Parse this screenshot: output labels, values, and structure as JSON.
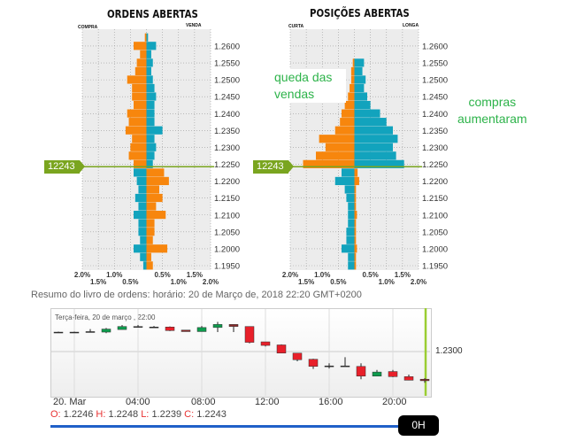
{
  "chart_data": [
    {
      "type": "bar",
      "title": "ORDENS ABERTAS",
      "left_label": "COMPRA",
      "right_label": "VENDA",
      "current_price": "12243",
      "price": 1.2243,
      "xticks": [
        "2.0%",
        "1.5%",
        "1.0%",
        "0.5%",
        "0.5%",
        "1.0%",
        "1.5%",
        "2.0%"
      ],
      "xlim": [
        -2,
        2
      ],
      "yticks": [
        "1.2600",
        "1.2550",
        "1.2500",
        "1.2450",
        "1.2400",
        "1.2350",
        "1.2300",
        "1.2250",
        "1.2200",
        "1.2150",
        "1.2100",
        "1.2050",
        "1.2000",
        "1.1950"
      ],
      "levels": [
        1.2625,
        1.26,
        1.2575,
        1.255,
        1.2525,
        1.25,
        1.2475,
        1.245,
        1.2425,
        1.24,
        1.2375,
        1.235,
        1.2325,
        1.23,
        1.2275,
        1.225,
        1.2225,
        1.22,
        1.2175,
        1.215,
        1.2125,
        1.21,
        1.2075,
        1.205,
        1.2025,
        1.2,
        1.1975,
        1.195
      ],
      "left_values": [
        0.05,
        0.4,
        0.2,
        0.3,
        0.35,
        0.6,
        0.45,
        0.45,
        0.4,
        0.6,
        0.55,
        0.65,
        0.45,
        0.5,
        0.55,
        0.4,
        0.4,
        0.3,
        0.25,
        0.35,
        0.25,
        0.4,
        0.25,
        0.25,
        0.2,
        0.4,
        0.2,
        0.1
      ],
      "right_values": [
        0.05,
        0.3,
        0.15,
        0.2,
        0.15,
        0.2,
        0.25,
        0.3,
        0.25,
        0.25,
        0.25,
        0.5,
        0.25,
        0.3,
        0.25,
        0.2,
        0.55,
        0.7,
        0.4,
        0.5,
        0.3,
        0.6,
        0.25,
        0.25,
        0.2,
        0.65,
        0.15,
        0.2
      ]
    },
    {
      "type": "bar",
      "title": "POSIÇÕES ABERTAS",
      "left_label": "CURTA",
      "right_label": "LONGA",
      "current_price": "12243",
      "price": 1.2243,
      "xticks": [
        "2.0%",
        "1.5%",
        "1.0%",
        "0.5%",
        "0.5%",
        "1.0%",
        "1.5%",
        "2.0%"
      ],
      "xlim": [
        -2,
        2
      ],
      "yticks": [
        "1.2600",
        "1.2550",
        "1.2500",
        "1.2450",
        "1.2400",
        "1.2350",
        "1.2300",
        "1.2250",
        "1.2200",
        "1.2150",
        "1.2100",
        "1.2050",
        "1.2000",
        "1.1950"
      ],
      "levels": [
        1.2625,
        1.26,
        1.2575,
        1.255,
        1.2525,
        1.25,
        1.2475,
        1.245,
        1.2425,
        1.24,
        1.2375,
        1.235,
        1.2325,
        1.23,
        1.2275,
        1.225,
        1.2225,
        1.22,
        1.2175,
        1.215,
        1.2125,
        1.21,
        1.2075,
        1.205,
        1.2025,
        1.2,
        1.1975,
        1.195
      ],
      "left_values": [
        0,
        0,
        0,
        0.05,
        0.1,
        0.1,
        0.15,
        0.2,
        0.3,
        0.4,
        0.45,
        0.6,
        1.1,
        0.9,
        1.2,
        1.6,
        0.4,
        0.6,
        0.3,
        0.25,
        0.2,
        0.2,
        0.2,
        0.25,
        0.25,
        0.4,
        0.2,
        0.2
      ],
      "right_values": [
        0,
        0,
        0,
        0.3,
        0.25,
        0.35,
        0.3,
        0.4,
        0.5,
        0.8,
        1.0,
        1.2,
        1.35,
        1.2,
        1.3,
        1.55,
        0.1,
        0.15,
        0.05,
        0.05,
        0.05,
        0.08,
        0.05,
        0.05,
        0.05,
        0.08,
        0.05,
        0.05
      ]
    },
    {
      "type": "candlestick",
      "date_label": "Terça-feira, 20 de março , 22:00",
      "ytick": "1.2300",
      "xticks": [
        "20. Mar",
        "04:00",
        "08:00",
        "12:00",
        "16:00",
        "20:00"
      ],
      "candles": [
        [
          1.2338,
          1.2339,
          1.2337,
          1.2338
        ],
        [
          1.2338,
          1.2339,
          1.2337,
          1.2338
        ],
        [
          1.2339,
          1.2344,
          1.2338,
          1.2339
        ],
        [
          1.2338,
          1.2346,
          1.2336,
          1.2344
        ],
        [
          1.2343,
          1.2352,
          1.2343,
          1.2349
        ],
        [
          1.2349,
          1.2352,
          1.2348,
          1.2349
        ],
        [
          1.2348,
          1.235,
          1.2347,
          1.2348
        ],
        [
          1.2348,
          1.2349,
          1.234,
          1.2341
        ],
        [
          1.2342,
          1.2342,
          1.2339,
          1.2339
        ],
        [
          1.2339,
          1.235,
          1.2339,
          1.2347
        ],
        [
          1.2347,
          1.2358,
          1.2338,
          1.2353
        ],
        [
          1.2353,
          1.2353,
          1.2338,
          1.2349
        ],
        [
          1.2349,
          1.2349,
          1.2316,
          1.2318
        ],
        [
          1.2319,
          1.2319,
          1.231,
          1.2312
        ],
        [
          1.2313,
          1.2314,
          1.2297,
          1.2297
        ],
        [
          1.2297,
          1.2297,
          1.2281,
          1.2284
        ],
        [
          1.2285,
          1.2286,
          1.2266,
          1.2271
        ],
        [
          1.2272,
          1.2277,
          1.2267,
          1.2272
        ],
        [
          1.2272,
          1.2289,
          1.2272,
          1.2272
        ],
        [
          1.2271,
          1.2277,
          1.2246,
          1.2252
        ],
        [
          1.2252,
          1.2264,
          1.2252,
          1.226
        ],
        [
          1.2261,
          1.2264,
          1.225,
          1.2251
        ],
        [
          1.2251,
          1.2255,
          1.2244,
          1.2244
        ],
        [
          1.2246,
          1.2248,
          1.2239,
          1.2243
        ]
      ],
      "ohlc": {
        "o_label": "O:",
        "o": "1.2246",
        "h_label": "H:",
        "h": "1.2248",
        "l_label": "L:",
        "l": "1.2239",
        "c_label": "C:",
        "c": "1.2243"
      }
    }
  ],
  "summary": "Resumo do livro de ordens: horário: 20 de Março de, 2018 22:20 GMT+0200",
  "annotations": {
    "left_1": "queda das",
    "left_2": "vendas",
    "right_1": "compras",
    "right_2": "aumentaram"
  },
  "slider": {
    "label": "0H"
  },
  "colors": {
    "orange": "#f7860d",
    "blue": "#12a3bd",
    "green": "#0e9b4d",
    "red": "#e8202a",
    "brown": "#8b2a2a",
    "price_line": "#7aa51f"
  }
}
